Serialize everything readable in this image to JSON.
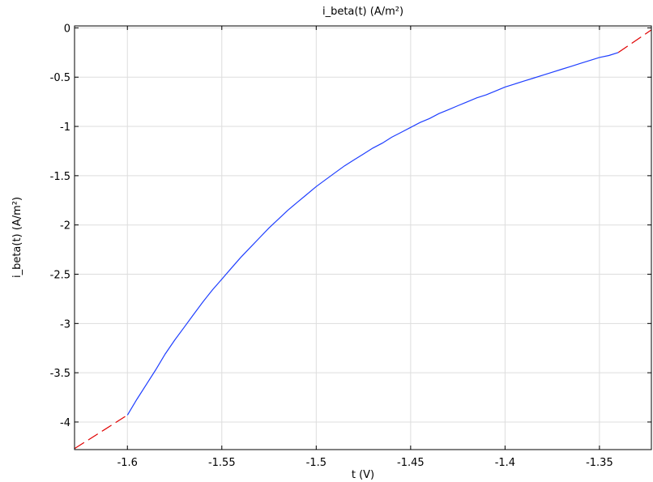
{
  "chart_data": {
    "type": "line",
    "title": "i_beta(t) (A/m²)",
    "xlabel": "t (V)",
    "ylabel": "i_beta(t) (A/m²)",
    "xlim": [
      -1.628,
      -1.3225
    ],
    "ylim": [
      -4.28,
      0.02
    ],
    "grid": true,
    "x_ticks": [
      -1.6,
      -1.55,
      -1.5,
      -1.45,
      -1.4,
      -1.35
    ],
    "x_tick_labels": [
      "-1.6",
      "-1.55",
      "-1.5",
      "-1.45",
      "-1.4",
      "-1.35"
    ],
    "y_ticks": [
      0,
      -0.5,
      -1,
      -1.5,
      -2,
      -2.5,
      -3,
      -3.5,
      -4
    ],
    "y_tick_labels": [
      "0",
      "-0.5",
      "-1",
      "-1.5",
      "-2",
      "-2.5",
      "-3",
      "-3.5",
      "-4"
    ],
    "series": [
      {
        "color": "#1f3fff",
        "style": "solid",
        "x": [
          -1.6,
          -1.595,
          -1.59,
          -1.585,
          -1.58,
          -1.575,
          -1.57,
          -1.565,
          -1.56,
          -1.555,
          -1.55,
          -1.545,
          -1.54,
          -1.535,
          -1.53,
          -1.525,
          -1.52,
          -1.515,
          -1.51,
          -1.505,
          -1.5,
          -1.495,
          -1.49,
          -1.485,
          -1.48,
          -1.475,
          -1.47,
          -1.465,
          -1.46,
          -1.455,
          -1.45,
          -1.445,
          -1.44,
          -1.435,
          -1.43,
          -1.425,
          -1.42,
          -1.415,
          -1.41,
          -1.405,
          -1.4,
          -1.395,
          -1.39,
          -1.385,
          -1.38,
          -1.375,
          -1.37,
          -1.365,
          -1.36,
          -1.355,
          -1.35,
          -1.345,
          -1.34
        ],
        "y": [
          -3.93,
          -3.77,
          -3.62,
          -3.47,
          -3.31,
          -3.17,
          -3.04,
          -2.91,
          -2.78,
          -2.66,
          -2.55,
          -2.44,
          -2.33,
          -2.23,
          -2.13,
          -2.03,
          -1.94,
          -1.85,
          -1.77,
          -1.69,
          -1.61,
          -1.54,
          -1.47,
          -1.4,
          -1.34,
          -1.28,
          -1.22,
          -1.17,
          -1.11,
          -1.06,
          -1.01,
          -0.96,
          -0.92,
          -0.87,
          -0.83,
          -0.79,
          -0.75,
          -0.71,
          -0.68,
          -0.64,
          -0.6,
          -0.57,
          -0.54,
          -0.51,
          -0.48,
          -0.45,
          -0.42,
          -0.39,
          -0.36,
          -0.33,
          -0.3,
          -0.28,
          -0.25
        ]
      },
      {
        "color": "#e00000",
        "style": "dashed",
        "x": [
          -1.628,
          -1.6
        ],
        "y": [
          -4.27,
          -3.93
        ]
      },
      {
        "color": "#e00000",
        "style": "dashed",
        "x": [
          -1.34,
          -1.3225
        ],
        "y": [
          -0.25,
          -0.02
        ]
      }
    ]
  }
}
